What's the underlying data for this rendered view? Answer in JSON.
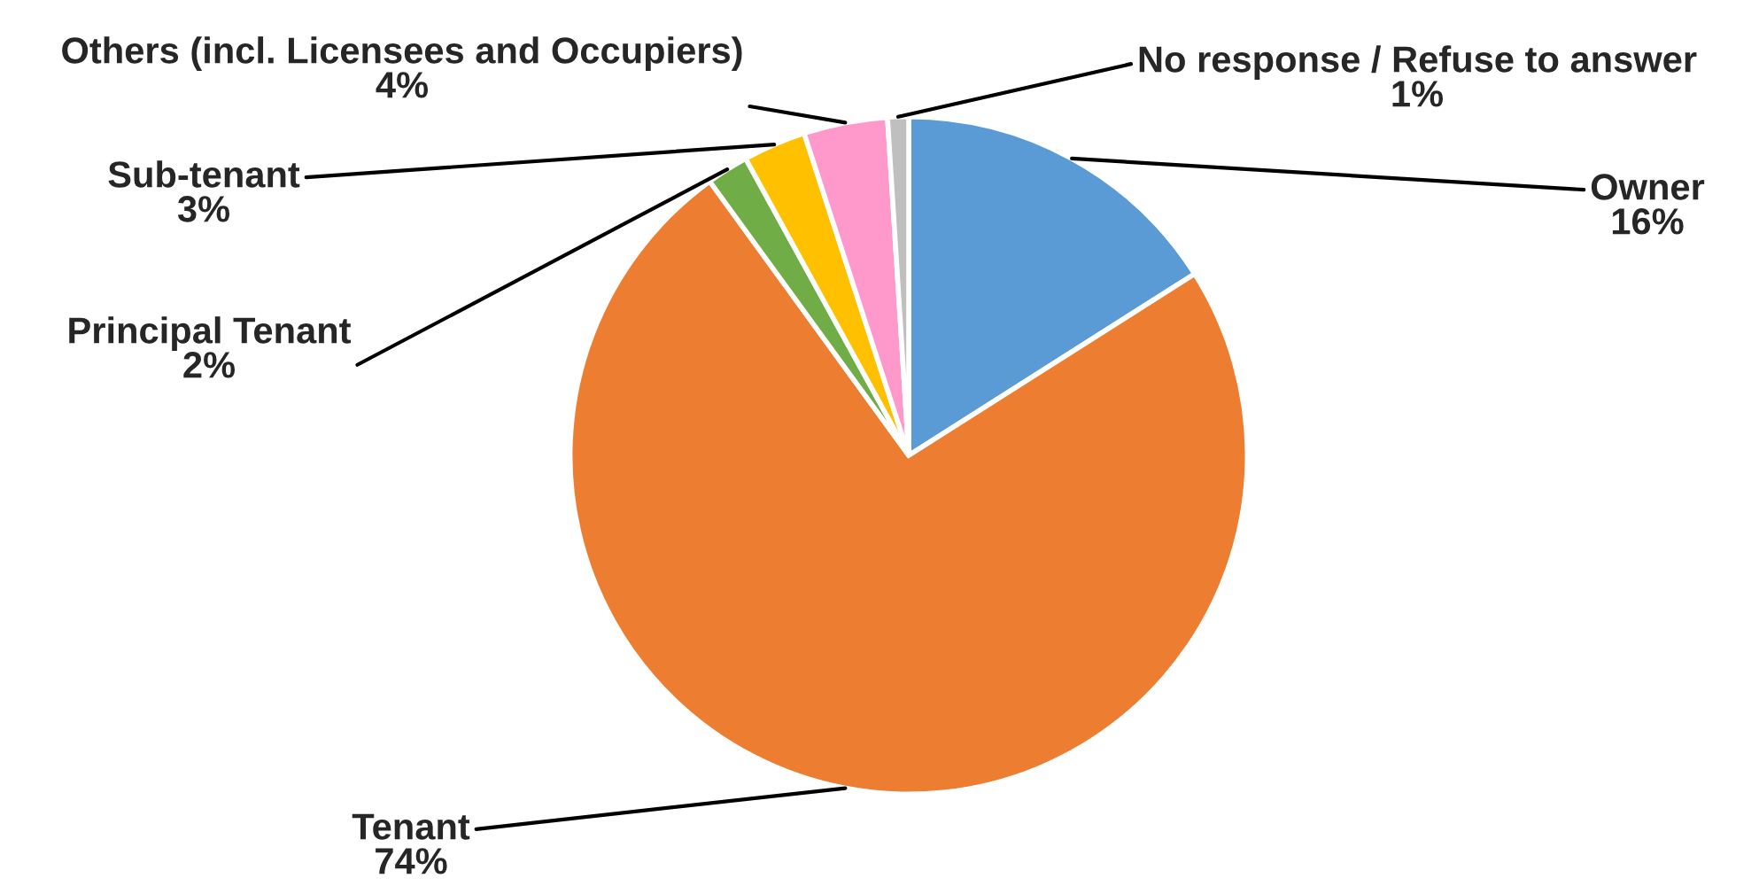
{
  "chart_data": {
    "type": "pie",
    "categories": [
      "Owner",
      "Tenant",
      "Principal Tenant",
      "Sub-tenant",
      "Others (incl. Licensees and Occupiers)",
      "No response / Refuse to answer"
    ],
    "values": [
      16,
      74,
      2,
      3,
      4,
      1
    ],
    "value_labels": [
      "16%",
      "74%",
      "2%",
      "3%",
      "4%",
      "1%"
    ],
    "colors": [
      "#5b9bd5",
      "#ed7d31",
      "#70ad47",
      "#ffc000",
      "#ff99cc",
      "#bfbfbf"
    ],
    "legend": false
  }
}
